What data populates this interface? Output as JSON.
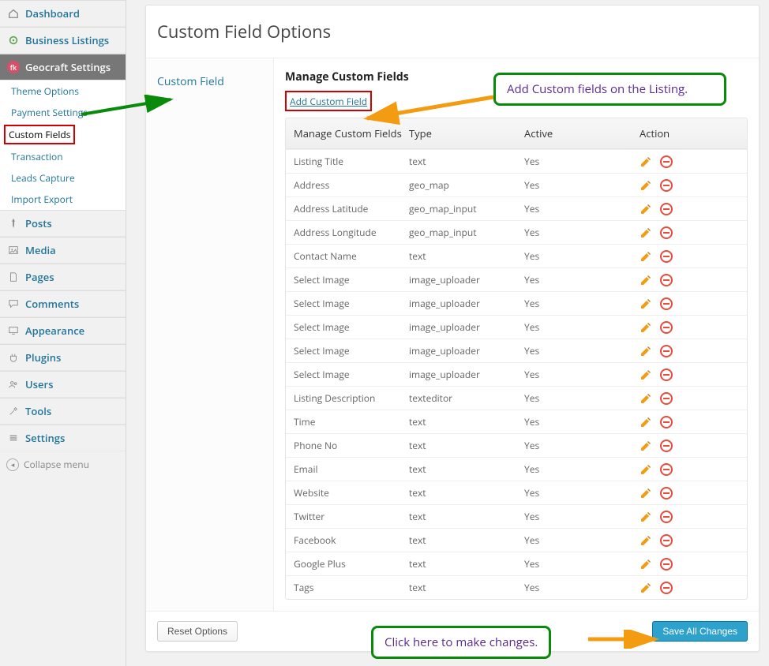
{
  "sidebar": {
    "items": [
      {
        "label": "Dashboard",
        "icon": "home"
      },
      {
        "label": "Business Listings",
        "icon": "target"
      },
      {
        "label": "Geocraft Settings",
        "icon": "fk",
        "active": true
      },
      {
        "label": "Theme Options",
        "sub": true
      },
      {
        "label": "Payment Settings",
        "sub": true
      },
      {
        "label": "Custom Fields",
        "sub": true,
        "boxed": true
      },
      {
        "label": "Transaction",
        "sub": true
      },
      {
        "label": "Leads Capture",
        "sub": true
      },
      {
        "label": "Import Export",
        "sub": true
      },
      {
        "label": "Posts",
        "icon": "pin"
      },
      {
        "label": "Media",
        "icon": "media"
      },
      {
        "label": "Pages",
        "icon": "page"
      },
      {
        "label": "Comments",
        "icon": "comment"
      },
      {
        "label": "Appearance",
        "icon": "appearance"
      },
      {
        "label": "Plugins",
        "icon": "plugin"
      },
      {
        "label": "Users",
        "icon": "users"
      },
      {
        "label": "Tools",
        "icon": "tools"
      },
      {
        "label": "Settings",
        "icon": "settings"
      }
    ],
    "collapse": "Collapse menu"
  },
  "page": {
    "title": "Custom Field Options",
    "tab": "Custom Field",
    "section_heading": "Manage Custom Fields",
    "add_link": "Add Custom Field",
    "columns": {
      "name": "Manage Custom Fields",
      "type": "Type",
      "active": "Active",
      "action": "Action"
    },
    "rows": [
      {
        "name": "Listing Title",
        "type": "text",
        "active": "Yes"
      },
      {
        "name": "Address",
        "type": "geo_map",
        "active": "Yes"
      },
      {
        "name": "Address Latitude",
        "type": "geo_map_input",
        "active": "Yes"
      },
      {
        "name": "Address Longitude",
        "type": "geo_map_input",
        "active": "Yes"
      },
      {
        "name": "Contact Name",
        "type": "text",
        "active": "Yes"
      },
      {
        "name": "Select Image",
        "type": "image_uploader",
        "active": "Yes"
      },
      {
        "name": "Select Image",
        "type": "image_uploader",
        "active": "Yes"
      },
      {
        "name": "Select Image",
        "type": "image_uploader",
        "active": "Yes"
      },
      {
        "name": "Select Image",
        "type": "image_uploader",
        "active": "Yes"
      },
      {
        "name": "Select Image",
        "type": "image_uploader",
        "active": "Yes"
      },
      {
        "name": "Listing Description",
        "type": "texteditor",
        "active": "Yes"
      },
      {
        "name": "Time",
        "type": "text",
        "active": "Yes"
      },
      {
        "name": "Phone No",
        "type": "text",
        "active": "Yes"
      },
      {
        "name": "Email",
        "type": "text",
        "active": "Yes"
      },
      {
        "name": "Website",
        "type": "text",
        "active": "Yes"
      },
      {
        "name": "Twitter",
        "type": "text",
        "active": "Yes"
      },
      {
        "name": "Facebook",
        "type": "text",
        "active": "Yes"
      },
      {
        "name": "Google Plus",
        "type": "text",
        "active": "Yes"
      },
      {
        "name": "Tags",
        "type": "text",
        "active": "Yes"
      }
    ],
    "reset_btn": "Reset Options",
    "save_btn": "Save All Changes"
  },
  "callouts": {
    "top": "Add Custom fields on the Listing.",
    "bottom": "Click here to make changes."
  },
  "colors": {
    "link": "#21759b",
    "callout_border": "#0a8a0a",
    "callout_text": "#5b2a91",
    "highlight_border": "#d40000",
    "arrow_green": "#0a8a0a",
    "arrow_orange": "#f39c12",
    "primary_btn": "#2ea2cc"
  }
}
